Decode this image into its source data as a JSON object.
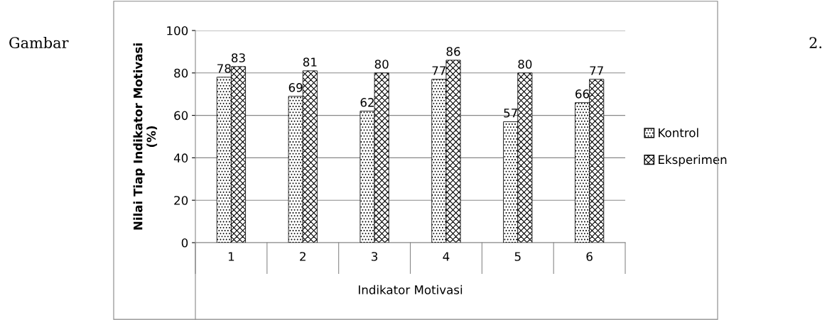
{
  "chart_data": {
    "type": "bar",
    "xlabel": "Indikator Motivasi",
    "ylabel": "Nilai Tiap Indikator Motivasi\n(%)",
    "categories": [
      "1",
      "2",
      "3",
      "4",
      "5",
      "6"
    ],
    "series": [
      {
        "name": "Kontrol",
        "color": "#000000",
        "values": [
          78,
          69,
          62,
          77,
          57,
          66
        ]
      },
      {
        "name": "Eksperimen",
        "color": "#000000",
        "values": [
          83,
          81,
          80,
          86,
          80,
          77
        ]
      }
    ],
    "ylim": [
      0,
      100
    ],
    "yticks": [
      0,
      20,
      40,
      60,
      80,
      100
    ],
    "grid": "y",
    "legend": "right",
    "data_labels": true,
    "annotations": [
      "Gambar",
      "2."
    ]
  }
}
